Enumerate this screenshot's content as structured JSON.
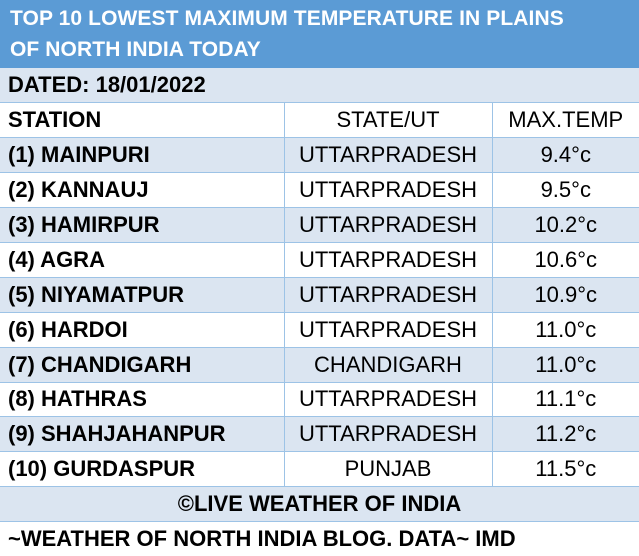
{
  "title_line1": "TOP 10 LOWEST MAXIMUM TEMPERATURE IN PLAINS",
  "title_line2": "OF NORTH INDIA TODAY",
  "dated": "DATED: 18/01/2022",
  "headers": {
    "station": "STATION",
    "state": "STATE/UT",
    "temp": "MAX.TEMP"
  },
  "rows": [
    {
      "station": "(1) MAINPURI",
      "state": "UTTARPRADESH",
      "temp": "9.4°c"
    },
    {
      "station": "(2) KANNAUJ",
      "state": "UTTARPRADESH",
      "temp": "9.5°c"
    },
    {
      "station": "(3) HAMIRPUR",
      "state": "UTTARPRADESH",
      "temp": "10.2°c"
    },
    {
      "station": "(4) AGRA",
      "state": "UTTARPRADESH",
      "temp": "10.6°c"
    },
    {
      "station": "(5) NIYAMATPUR",
      "state": "UTTARPRADESH",
      "temp": "10.9°c"
    },
    {
      "station": "(6) HARDOI",
      "state": "UTTARPRADESH",
      "temp": "11.0°c"
    },
    {
      "station": "(7) CHANDIGARH",
      "state": "CHANDIGARH",
      "temp": "11.0°c"
    },
    {
      "station": "(8) HATHRAS",
      "state": "UTTARPRADESH",
      "temp": "11.1°c"
    },
    {
      "station": "(9) SHAHJAHANPUR",
      "state": "UTTARPRADESH",
      "temp": "11.2°c"
    },
    {
      "station": "(10) GURDASPUR",
      "state": "PUNJAB",
      "temp": "11.5°c"
    }
  ],
  "credit": "©LIVE WEATHER OF INDIA",
  "footer": "~WEATHER OF NORTH INDIA BLOG.  DATA~ IMD",
  "colors": {
    "title_bg": "#5b9bd5",
    "row_shade": "#dbe5f1",
    "grid": "#9dc3e6"
  }
}
